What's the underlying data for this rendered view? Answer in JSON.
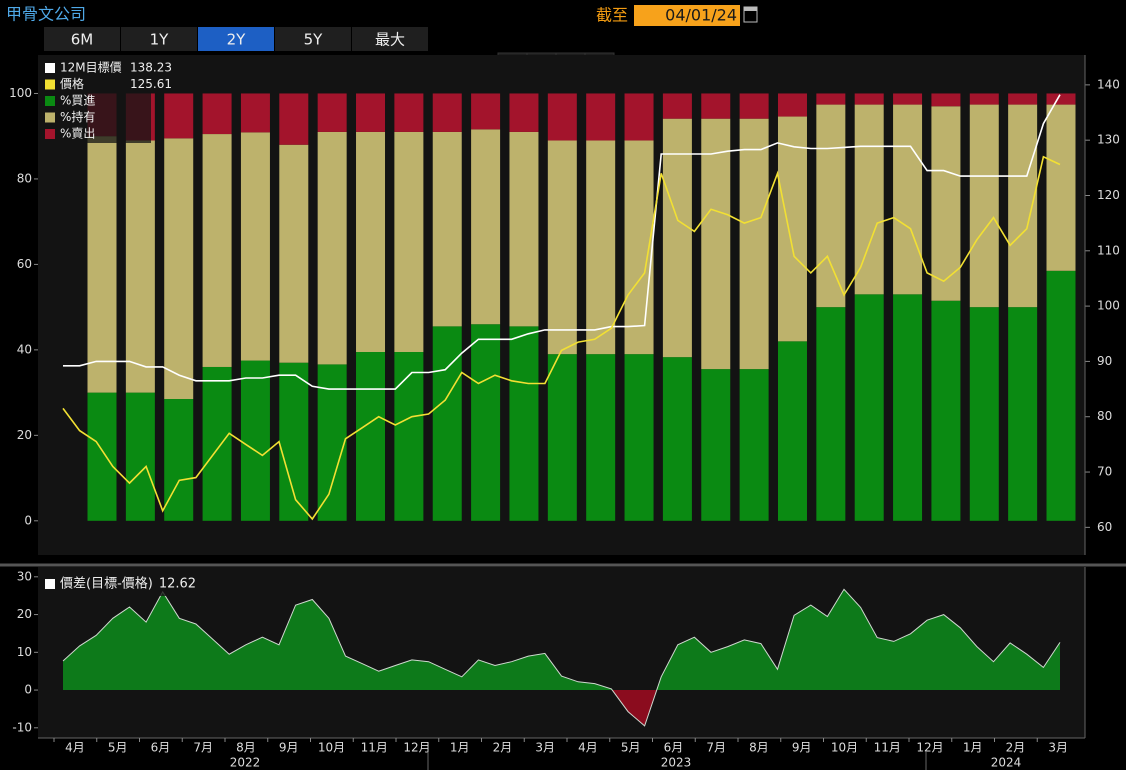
{
  "header": {
    "title": "甲骨文公司",
    "as_of_label": "截至",
    "date": "04/01/24",
    "ranges": [
      "6M",
      "1Y",
      "2Y",
      "5Y",
      "最大"
    ],
    "active_range": "2Y"
  },
  "chart_data": [
    {
      "type": "bar",
      "ylim": [
        -8,
        109
      ],
      "yticks": [
        0,
        20,
        40,
        60,
        80,
        100
      ],
      "y2lim": [
        55,
        145.4
      ],
      "y2ticks": [
        60,
        70,
        80,
        90,
        100,
        110,
        120,
        130,
        140
      ],
      "grid": false,
      "legend": "top-left",
      "series": [
        {
          "name": "12M目標價",
          "type": "line",
          "axis": "y2",
          "color": "#ffffff",
          "values": [
            89.2,
            89.2,
            90,
            90,
            90,
            89,
            89,
            87.5,
            86.5,
            86.5,
            86.5,
            87,
            87,
            87.5,
            87.5,
            85.5,
            85,
            85,
            85,
            85,
            85,
            88,
            88,
            88.5,
            91.5,
            94,
            94,
            94,
            95,
            95.7,
            95.7,
            95.7,
            95.7,
            96.3,
            96.3,
            96.5,
            127.5,
            127.5,
            127.5,
            127.5,
            128,
            128.3,
            128.3,
            129.5,
            128.8,
            128.5,
            128.5,
            128.7,
            128.9,
            128.9,
            128.9,
            128.9,
            124.5,
            124.5,
            123.5,
            123.5,
            123.5,
            123.5,
            123.5,
            133,
            138.23
          ]
        },
        {
          "name": "價格",
          "type": "line",
          "axis": "y2",
          "color": "#f2e033",
          "values": [
            81.5,
            77.5,
            75.5,
            71,
            68,
            71,
            63,
            68.5,
            69,
            73,
            77,
            75,
            73,
            75.5,
            65,
            61.5,
            66,
            76,
            78,
            80,
            78.5,
            80,
            80.5,
            83,
            88,
            86,
            87.5,
            86.5,
            86,
            86,
            92,
            93.5,
            94,
            96,
            102,
            106,
            124,
            115.5,
            113.5,
            117.5,
            116.5,
            115,
            116,
            124,
            109,
            106,
            109,
            102,
            107,
            115,
            116,
            114,
            106,
            104.5,
            107,
            112,
            116,
            111,
            114,
            127,
            125.61
          ]
        },
        {
          "name": "%買進",
          "type": "bar",
          "color": "#0a8a12",
          "values": [
            30,
            30,
            28.5,
            36,
            37.5,
            37,
            36.6,
            39.5,
            39.5,
            45.5,
            46,
            45.5,
            39,
            39,
            39,
            38.3,
            35.5,
            35.5,
            42,
            50,
            53,
            53,
            51.5,
            50,
            50,
            58.5
          ]
        },
        {
          "name": "%持有",
          "type": "bar",
          "color": "#bdb26c",
          "values": [
            60,
            59,
            61,
            54.5,
            53.4,
            51,
            54.4,
            51.5,
            51.5,
            45.5,
            45.6,
            45.5,
            50,
            50,
            50,
            55.8,
            58.6,
            58.6,
            52.6,
            47.4,
            44.4,
            44.4,
            45.5,
            47.4,
            47.4,
            38.9
          ]
        },
        {
          "name": "%賣出",
          "type": "bar",
          "color": "#a3142c",
          "values": [
            10,
            11,
            10.5,
            9.5,
            9.1,
            12,
            9,
            9,
            9,
            9,
            8.4,
            9,
            11,
            11,
            11,
            5.9,
            5.9,
            5.9,
            5.4,
            2.6,
            2.6,
            2.6,
            3,
            2.6,
            2.6,
            2.6
          ]
        }
      ]
    },
    {
      "type": "area",
      "ylim": [
        -12.7,
        32.6
      ],
      "yticks": [
        -10,
        0,
        10,
        20,
        30
      ],
      "grid": false,
      "legend": "top-left",
      "series": [
        {
          "name": "價差(目標-價格)",
          "color": "#0d7a1a",
          "negative_color": "#8b0c1e",
          "values": [
            7.7,
            11.7,
            14.5,
            19,
            22,
            18,
            26,
            19,
            17.5,
            13.5,
            9.5,
            12,
            14,
            12,
            22.5,
            24,
            19,
            9,
            7,
            5,
            6.5,
            8,
            7.5,
            5.5,
            3.5,
            8,
            6.5,
            7.5,
            9,
            9.7,
            3.7,
            2.2,
            1.7,
            0.3,
            -5.7,
            -9.5,
            3.5,
            12,
            14,
            10,
            11.5,
            13.3,
            12.3,
            5.5,
            19.8,
            22.5,
            19.5,
            26.7,
            21.9,
            13.9,
            12.9,
            14.9,
            18.5,
            20,
            16.5,
            11.5,
            7.5,
            12.5,
            9.5,
            6,
            12.62
          ]
        }
      ],
      "month_labels": [
        "4月",
        "5月",
        "6月",
        "7月",
        "8月",
        "9月",
        "10月",
        "11月",
        "12月",
        "1月",
        "2月",
        "3月",
        "4月",
        "5月",
        "6月",
        "7月",
        "8月",
        "9月",
        "10月",
        "11月",
        "12月",
        "1月",
        "2月",
        "3月"
      ],
      "year_labels": [
        "2022",
        "2023",
        "2024"
      ]
    }
  ]
}
